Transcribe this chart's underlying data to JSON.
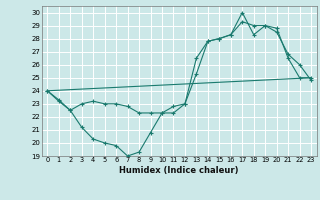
{
  "xlabel": "Humidex (Indice chaleur)",
  "xlim": [
    -0.5,
    23.5
  ],
  "ylim": [
    19,
    30.5
  ],
  "yticks": [
    19,
    20,
    21,
    22,
    23,
    24,
    25,
    26,
    27,
    28,
    29,
    30
  ],
  "xticks": [
    0,
    1,
    2,
    3,
    4,
    5,
    6,
    7,
    8,
    9,
    10,
    11,
    12,
    13,
    14,
    15,
    16,
    17,
    18,
    19,
    20,
    21,
    22,
    23
  ],
  "bg_color": "#cce8e8",
  "grid_color": "#ffffff",
  "line_color": "#1a7a6e",
  "line1_x": [
    0,
    1,
    2,
    3,
    4,
    5,
    6,
    7,
    8,
    9,
    10,
    11,
    12,
    13,
    14,
    15,
    16,
    17,
    18,
    19,
    20,
    21,
    22,
    23
  ],
  "line1_y": [
    24.0,
    23.3,
    22.5,
    21.2,
    20.3,
    20.0,
    19.8,
    19.0,
    19.3,
    20.8,
    22.3,
    22.3,
    23.0,
    25.3,
    27.8,
    28.0,
    28.3,
    30.0,
    28.3,
    29.0,
    28.5,
    26.8,
    26.0,
    24.8
  ],
  "line2_x": [
    0,
    1,
    2,
    3,
    4,
    5,
    6,
    7,
    8,
    9,
    10,
    11,
    12,
    13,
    14,
    15,
    16,
    17,
    18,
    19,
    20,
    21,
    22,
    23
  ],
  "line2_y": [
    24.0,
    23.2,
    22.5,
    23.0,
    23.2,
    23.0,
    23.0,
    22.8,
    22.3,
    22.3,
    22.3,
    22.8,
    23.0,
    26.5,
    27.8,
    28.0,
    28.3,
    29.3,
    29.0,
    29.0,
    28.8,
    26.5,
    25.0,
    25.0
  ],
  "line3_x": [
    0,
    23
  ],
  "line3_y": [
    24.0,
    25.0
  ]
}
